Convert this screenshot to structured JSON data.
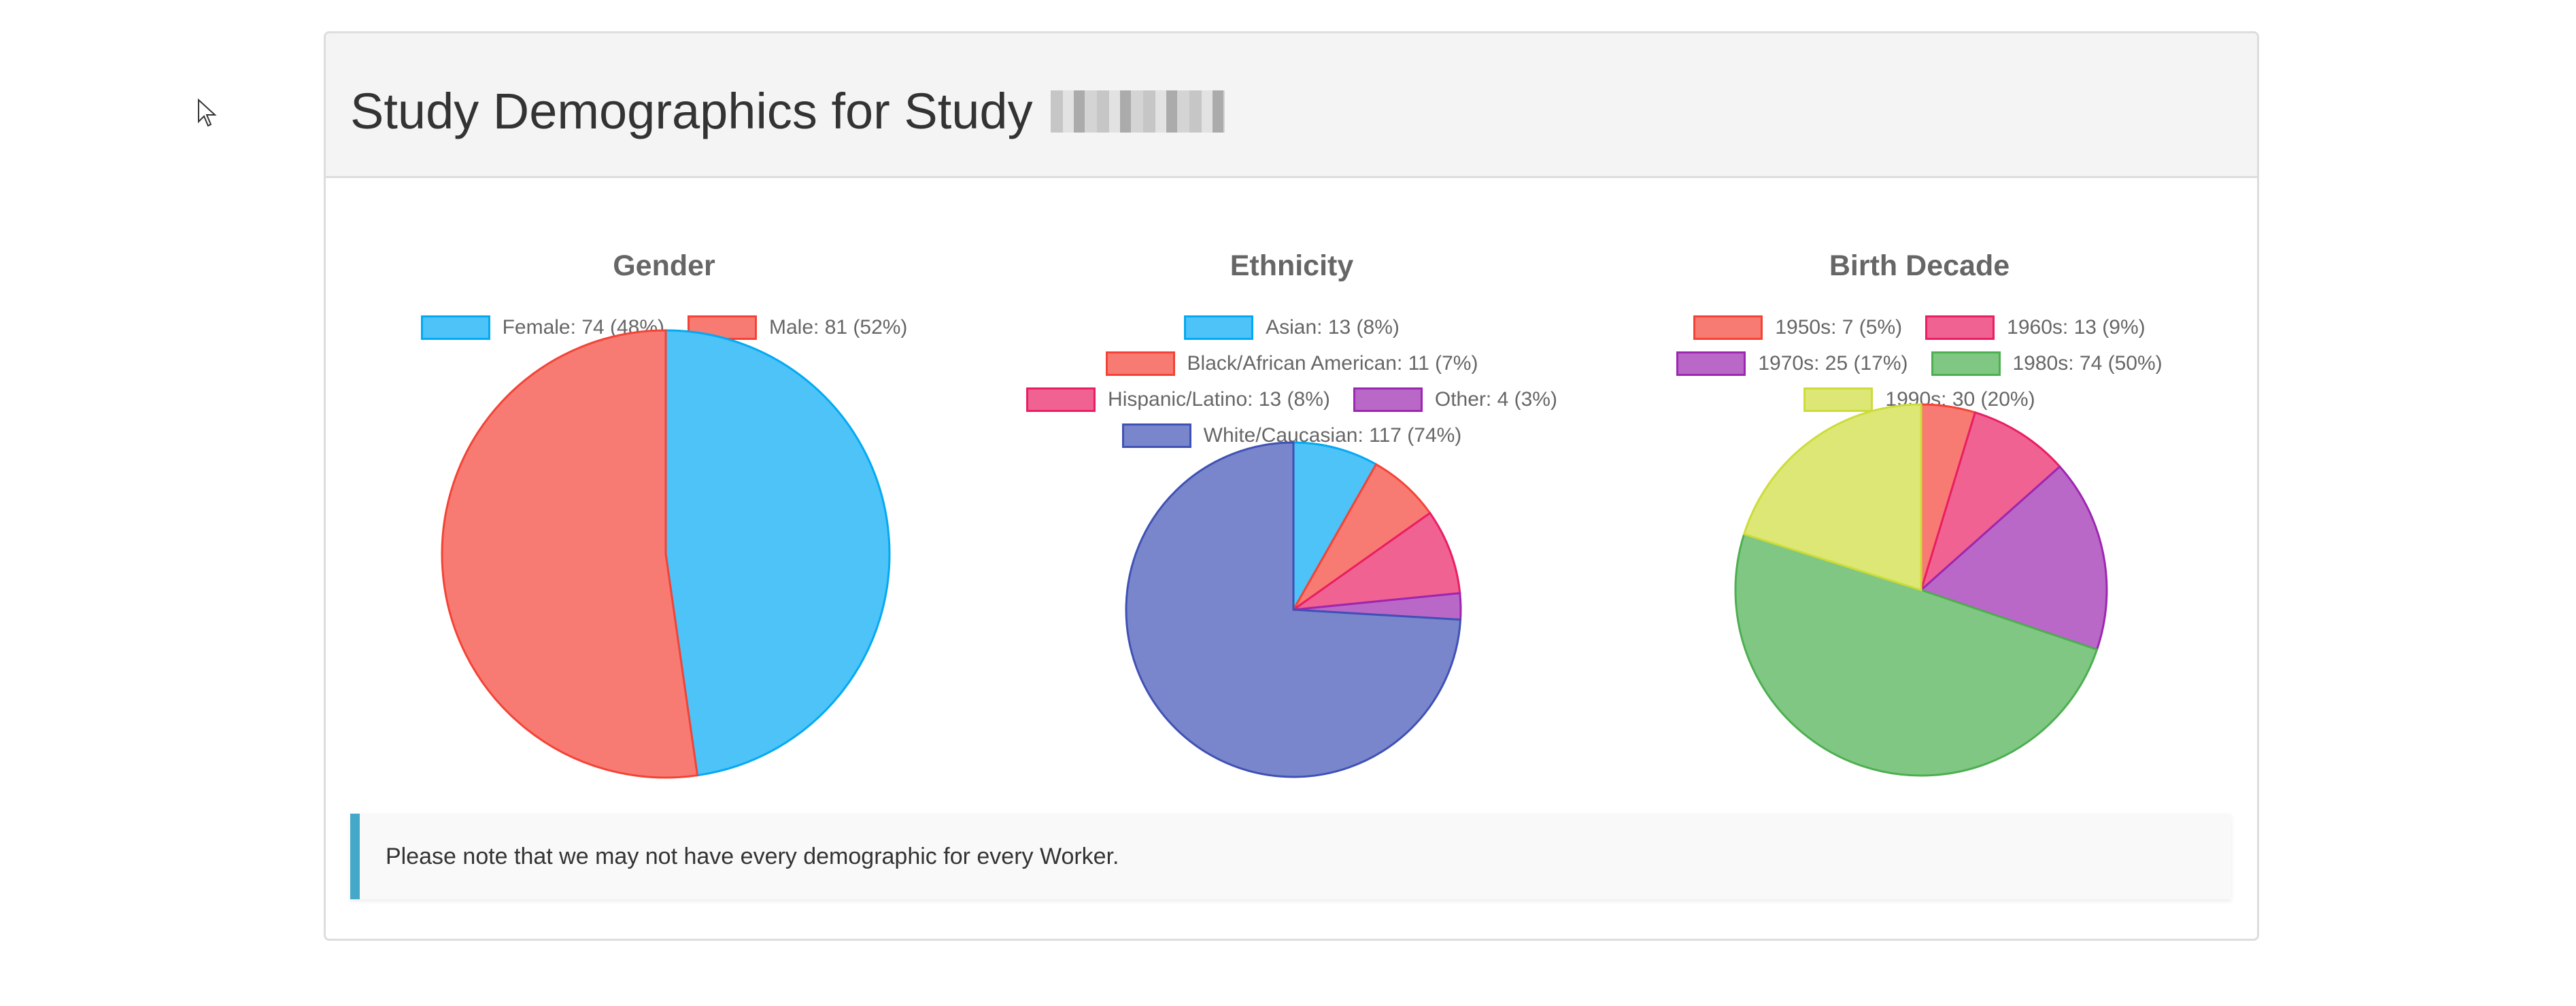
{
  "header": {
    "title": "Study Demographics for Study"
  },
  "note": "Please note that we may not have every demographic for every Worker.",
  "chart_data": [
    {
      "type": "pie",
      "title": "Gender",
      "categories": [
        "Female",
        "Male"
      ],
      "values": [
        74,
        81
      ],
      "legend": [
        "Female: 74 (48%)",
        "Male: 81 (52%)"
      ],
      "colors": [
        "#4dc3f7",
        "#f77b72"
      ],
      "borders": [
        "#03a9f4",
        "#f44336"
      ],
      "legend_position": "top"
    },
    {
      "type": "pie",
      "title": "Ethnicity",
      "categories": [
        "Asian",
        "Black/African American",
        "Hispanic/Latino",
        "Other",
        "White/Caucasian"
      ],
      "values": [
        13,
        11,
        13,
        4,
        117
      ],
      "legend": [
        "Asian: 13 (8%)",
        "Black/African American: 11 (7%)",
        "Hispanic/Latino: 13 (8%)",
        "Other: 4 (3%)",
        "White/Caucasian: 117 (74%)"
      ],
      "colors": [
        "#4dc3f7",
        "#f77b72",
        "#f06292",
        "#ba68c8",
        "#7986cb"
      ],
      "borders": [
        "#03a9f4",
        "#f44336",
        "#e91e63",
        "#9c27b0",
        "#3f51b5"
      ],
      "legend_position": "top"
    },
    {
      "type": "pie",
      "title": "Birth Decade",
      "categories": [
        "1950s",
        "1960s",
        "1970s",
        "1980s",
        "1990s"
      ],
      "values": [
        7,
        13,
        25,
        74,
        30
      ],
      "legend": [
        "1950s: 7 (5%)",
        "1960s: 13 (9%)",
        "1970s: 25 (17%)",
        "1980s: 74 (50%)",
        "1990s: 30 (20%)"
      ],
      "colors": [
        "#f77b72",
        "#f06292",
        "#ba68c8",
        "#81c784",
        "#dce775"
      ],
      "borders": [
        "#f44336",
        "#e91e63",
        "#9c27b0",
        "#4caf50",
        "#cddc39"
      ],
      "legend_position": "top"
    }
  ]
}
